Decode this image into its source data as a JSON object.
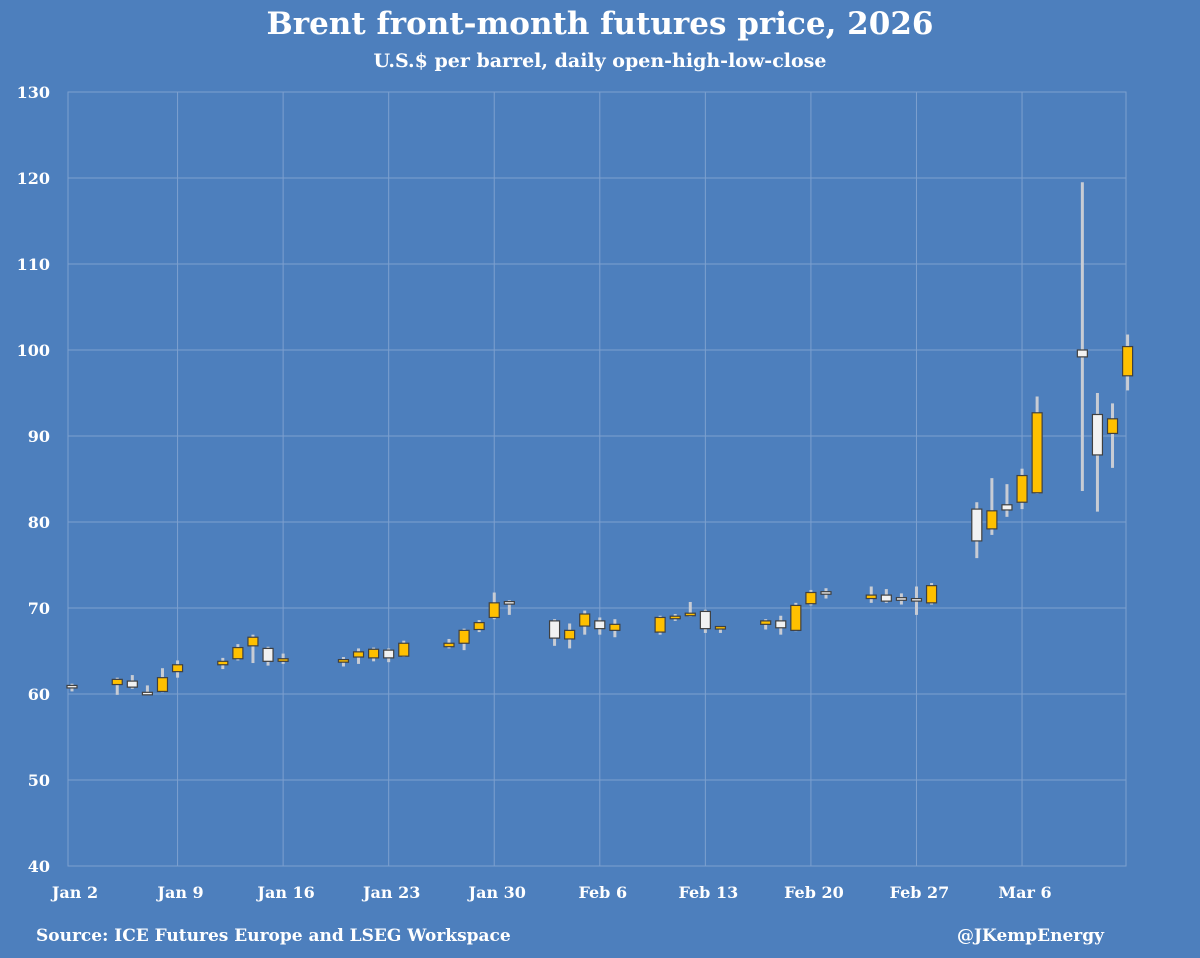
{
  "header": {
    "title": "Brent front-month futures price, 2026",
    "subtitle": "U.S.$ per barrel, daily open-high-low-close"
  },
  "footer": {
    "source": "Source: ICE Futures Europe and LSEG Workspace",
    "handle": "@JKempEnergy"
  },
  "colors": {
    "background": "#4d7fbd",
    "up_candle": "#ffc000",
    "down_candle": "#f2f2f2",
    "candle_border": "#404040",
    "wick": "#c8ccd4",
    "grid": "#7da0cf"
  },
  "chart_data": {
    "type": "candlestick",
    "title": "Brent front-month futures price, 2026",
    "subtitle": "U.S.$ per barrel, daily open-high-low-close",
    "xlabel": "",
    "ylabel": "U.S.$ per barrel",
    "ylim": [
      40,
      130
    ],
    "yticks": [
      40,
      50,
      60,
      70,
      80,
      90,
      100,
      110,
      120,
      130
    ],
    "x_day_range": [
      0,
      68
    ],
    "xticks": [
      {
        "label": "Jan 2",
        "day": 0
      },
      {
        "label": "Jan 9",
        "day": 7
      },
      {
        "label": "Jan 16",
        "day": 14
      },
      {
        "label": "Jan 23",
        "day": 21
      },
      {
        "label": "Jan 30",
        "day": 28
      },
      {
        "label": "Feb 6",
        "day": 35
      },
      {
        "label": "Feb 13",
        "day": 42
      },
      {
        "label": "Feb 20",
        "day": 49
      },
      {
        "label": "Feb 27",
        "day": 56
      },
      {
        "label": "Mar 6",
        "day": 63
      }
    ],
    "grid": true,
    "candles": [
      {
        "date": "Jan 2",
        "day": 0,
        "open": 60.9,
        "high": 61.2,
        "low": 60.3,
        "close": 60.8
      },
      {
        "date": "Jan 5",
        "day": 3,
        "open": 61.1,
        "high": 61.9,
        "low": 59.9,
        "close": 61.7
      },
      {
        "date": "Jan 6",
        "day": 4,
        "open": 61.5,
        "high": 62.2,
        "low": 60.6,
        "close": 60.8
      },
      {
        "date": "Jan 7",
        "day": 5,
        "open": 60.1,
        "high": 61.0,
        "low": 59.9,
        "close": 60.0
      },
      {
        "date": "Jan 8",
        "day": 6,
        "open": 60.3,
        "high": 63.0,
        "low": 60.2,
        "close": 61.9
      },
      {
        "date": "Jan 9",
        "day": 7,
        "open": 62.6,
        "high": 63.9,
        "low": 61.9,
        "close": 63.4
      },
      {
        "date": "Jan 12",
        "day": 10,
        "open": 63.4,
        "high": 64.2,
        "low": 62.9,
        "close": 63.8
      },
      {
        "date": "Jan 13",
        "day": 11,
        "open": 64.1,
        "high": 65.8,
        "low": 63.9,
        "close": 65.4
      },
      {
        "date": "Jan 14",
        "day": 12,
        "open": 65.6,
        "high": 66.9,
        "low": 63.6,
        "close": 66.6
      },
      {
        "date": "Jan 15",
        "day": 13,
        "open": 65.3,
        "high": 65.5,
        "low": 63.3,
        "close": 63.8
      },
      {
        "date": "Jan 16",
        "day": 14,
        "open": 63.8,
        "high": 64.7,
        "low": 63.5,
        "close": 64.1
      },
      {
        "date": "Jan 20",
        "day": 18,
        "open": 63.7,
        "high": 64.3,
        "low": 63.2,
        "close": 64.0
      },
      {
        "date": "Jan 21",
        "day": 19,
        "open": 64.3,
        "high": 65.3,
        "low": 63.5,
        "close": 64.9
      },
      {
        "date": "Jan 22",
        "day": 20,
        "open": 64.2,
        "high": 65.4,
        "low": 63.8,
        "close": 65.2
      },
      {
        "date": "Jan 23",
        "day": 21,
        "open": 65.1,
        "high": 65.3,
        "low": 63.7,
        "close": 64.2
      },
      {
        "date": "Jan 24",
        "day": 22,
        "open": 64.4,
        "high": 66.2,
        "low": 64.3,
        "close": 65.9
      },
      {
        "date": "Jan 27",
        "day": 25,
        "open": 65.5,
        "high": 66.4,
        "low": 65.3,
        "close": 65.9
      },
      {
        "date": "Jan 28",
        "day": 26,
        "open": 65.9,
        "high": 67.6,
        "low": 65.1,
        "close": 67.4
      },
      {
        "date": "Jan 29",
        "day": 27,
        "open": 67.5,
        "high": 68.6,
        "low": 67.2,
        "close": 68.3
      },
      {
        "date": "Jan 30",
        "day": 28,
        "open": 68.9,
        "high": 71.8,
        "low": 68.7,
        "close": 70.6
      },
      {
        "date": "Jan 31",
        "day": 29,
        "open": 70.7,
        "high": 70.9,
        "low": 69.2,
        "close": 70.5
      },
      {
        "date": "Feb 3",
        "day": 32,
        "open": 68.5,
        "high": 68.7,
        "low": 65.6,
        "close": 66.5
      },
      {
        "date": "Feb 4",
        "day": 33,
        "open": 66.4,
        "high": 68.2,
        "low": 65.3,
        "close": 67.4
      },
      {
        "date": "Feb 5",
        "day": 34,
        "open": 67.9,
        "high": 69.7,
        "low": 66.9,
        "close": 69.3
      },
      {
        "date": "Feb 6",
        "day": 35,
        "open": 68.5,
        "high": 68.9,
        "low": 66.9,
        "close": 67.6
      },
      {
        "date": "Feb 7",
        "day": 36,
        "open": 67.4,
        "high": 68.7,
        "low": 66.6,
        "close": 68.1
      },
      {
        "date": "Feb 10",
        "day": 39,
        "open": 67.2,
        "high": 69.1,
        "low": 66.9,
        "close": 68.9
      },
      {
        "date": "Feb 11",
        "day": 40,
        "open": 68.8,
        "high": 69.3,
        "low": 68.5,
        "close": 69.0
      },
      {
        "date": "Feb 12",
        "day": 41,
        "open": 69.2,
        "high": 70.7,
        "low": 69.0,
        "close": 69.3
      },
      {
        "date": "Feb 13",
        "day": 42,
        "open": 69.6,
        "high": 69.8,
        "low": 67.1,
        "close": 67.6
      },
      {
        "date": "Feb 14",
        "day": 43,
        "open": 67.6,
        "high": 67.9,
        "low": 67.1,
        "close": 67.8
      },
      {
        "date": "Feb 17",
        "day": 46,
        "open": 68.1,
        "high": 68.7,
        "low": 67.5,
        "close": 68.5
      },
      {
        "date": "Feb 18",
        "day": 47,
        "open": 68.5,
        "high": 69.1,
        "low": 66.9,
        "close": 67.7
      },
      {
        "date": "Feb 19",
        "day": 48,
        "open": 67.4,
        "high": 70.6,
        "low": 67.3,
        "close": 70.3
      },
      {
        "date": "Feb 20",
        "day": 49,
        "open": 70.5,
        "high": 72.1,
        "low": 70.3,
        "close": 71.8
      },
      {
        "date": "Feb 21",
        "day": 50,
        "open": 71.8,
        "high": 72.3,
        "low": 71.1,
        "close": 71.7
      },
      {
        "date": "Feb 24",
        "day": 53,
        "open": 71.1,
        "high": 72.5,
        "low": 70.6,
        "close": 71.5
      },
      {
        "date": "Feb 25",
        "day": 54,
        "open": 71.5,
        "high": 72.2,
        "low": 70.6,
        "close": 70.8
      },
      {
        "date": "Feb 26",
        "day": 55,
        "open": 71.2,
        "high": 71.7,
        "low": 70.4,
        "close": 70.9
      },
      {
        "date": "Feb 27",
        "day": 56,
        "open": 71.0,
        "high": 72.5,
        "low": 69.2,
        "close": 70.9
      },
      {
        "date": "Feb 28",
        "day": 57,
        "open": 70.6,
        "high": 72.9,
        "low": 70.4,
        "close": 72.6
      },
      {
        "date": "Mar 2",
        "day": 60,
        "open": 81.5,
        "high": 82.3,
        "low": 75.8,
        "close": 77.8
      },
      {
        "date": "Mar 3",
        "day": 61,
        "open": 79.2,
        "high": 85.1,
        "low": 78.5,
        "close": 81.3
      },
      {
        "date": "Mar 4",
        "day": 62,
        "open": 82.0,
        "high": 84.4,
        "low": 80.6,
        "close": 81.4
      },
      {
        "date": "Mar 5",
        "day": 63,
        "open": 82.3,
        "high": 86.2,
        "low": 81.5,
        "close": 85.4
      },
      {
        "date": "Mar 6",
        "day": 64,
        "open": 83.4,
        "high": 94.6,
        "low": 83.3,
        "close": 92.7
      },
      {
        "date": "Mar 9",
        "day": 67,
        "open": 100.0,
        "high": 119.5,
        "low": 83.6,
        "close": 99.2
      },
      {
        "date": "Mar 10",
        "day": 68,
        "open": 92.5,
        "high": 95.0,
        "low": 81.2,
        "close": 87.8
      },
      {
        "date": "Mar 11",
        "day": 69,
        "open": 90.3,
        "high": 93.8,
        "low": 86.3,
        "close": 92.0
      },
      {
        "date": "Mar 12",
        "day": 70,
        "open": 97.0,
        "high": 101.8,
        "low": 95.3,
        "close": 100.4
      }
    ]
  }
}
